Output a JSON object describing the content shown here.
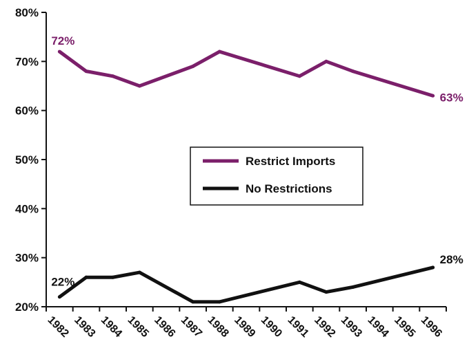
{
  "chart_data": {
    "type": "line",
    "categories": [
      "1982",
      "1983",
      "1984",
      "1985",
      "1986",
      "1987",
      "1988",
      "1989",
      "1990",
      "1991",
      "1992",
      "1993",
      "1994",
      "1995",
      "1996"
    ],
    "x": [
      1982,
      1983,
      1984,
      1985,
      1987,
      1988,
      1991,
      1992,
      1993,
      1996
    ],
    "series": [
      {
        "name": "Restrict Imports",
        "color": "#7b1f6a",
        "values": [
          72,
          68,
          67,
          65,
          69,
          72,
          67,
          70,
          68,
          63
        ]
      },
      {
        "name": "No Restrictions",
        "color": "#111111",
        "values": [
          22,
          26,
          26,
          27,
          21,
          21,
          25,
          23,
          24,
          28
        ]
      }
    ],
    "yticks": [
      "20%",
      "30%",
      "40%",
      "50%",
      "60%",
      "70%",
      "80%"
    ],
    "ytick_values": [
      20,
      30,
      40,
      50,
      60,
      70,
      80
    ],
    "ylim": [
      20,
      80
    ],
    "data_labels": [
      {
        "series": 0,
        "point": 0,
        "text": "72%"
      },
      {
        "series": 0,
        "point": 9,
        "text": "63%"
      },
      {
        "series": 1,
        "point": 0,
        "text": "22%"
      },
      {
        "series": 1,
        "point": 9,
        "text": "28%"
      }
    ],
    "legend_position": "center-right",
    "grid": false,
    "title": "",
    "xlabel": "",
    "ylabel": ""
  }
}
